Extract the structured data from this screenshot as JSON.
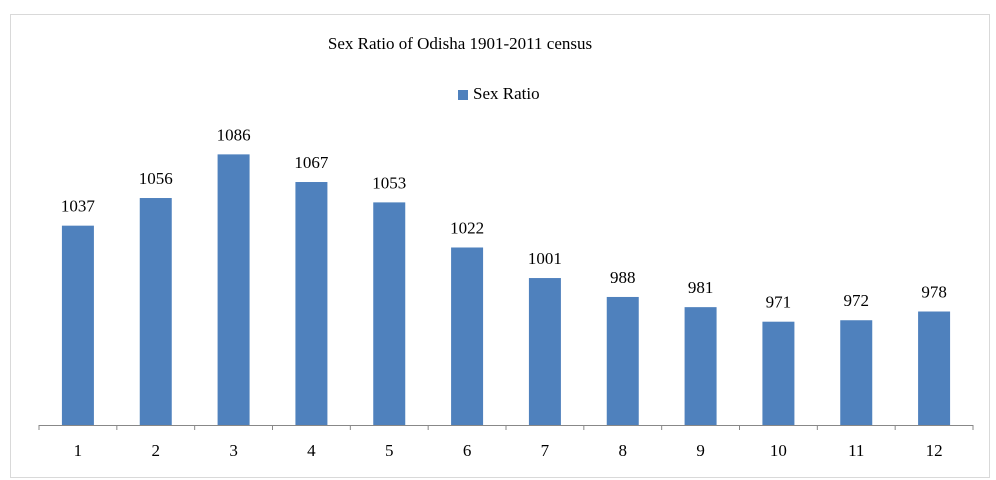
{
  "chart_data": {
    "type": "bar",
    "title": "Sex Ratio of Odisha 1901-2011 census",
    "categories": [
      "1",
      "2",
      "3",
      "4",
      "5",
      "6",
      "7",
      "8",
      "9",
      "10",
      "11",
      "12"
    ],
    "series": [
      {
        "name": "Sex Ratio",
        "color": "#4f81bd",
        "values": [
          1037,
          1056,
          1086,
          1067,
          1053,
          1022,
          1001,
          988,
          981,
          971,
          972,
          978
        ]
      }
    ],
    "ylim": [
      900,
      1100
    ],
    "legend": "top"
  }
}
